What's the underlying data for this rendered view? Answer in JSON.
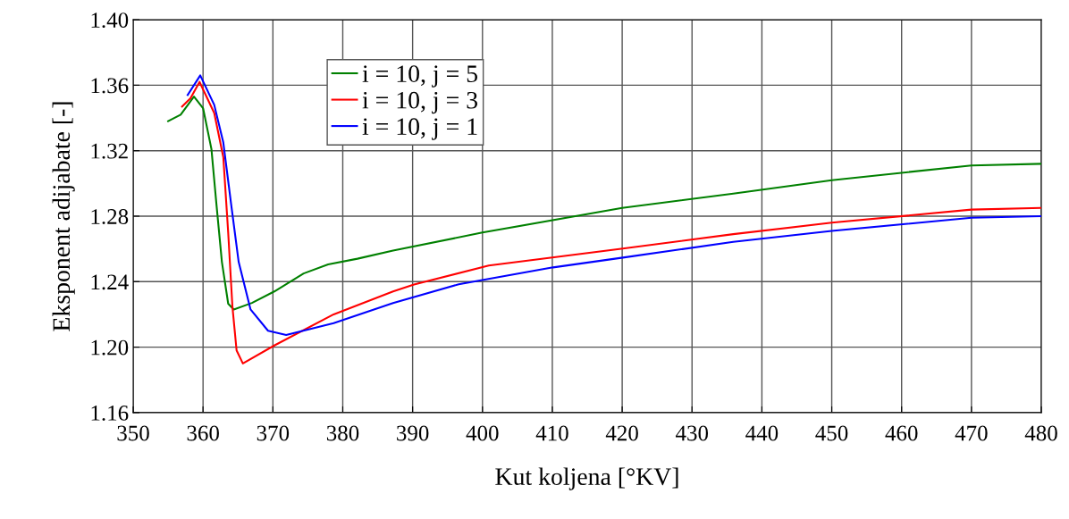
{
  "chart_data": {
    "type": "line",
    "xlabel": "Kut koljena [°KV]",
    "ylabel": "Eksponent adijabate [-]",
    "xlim": [
      350,
      480
    ],
    "xticks": [
      350,
      360,
      370,
      380,
      390,
      400,
      410,
      420,
      430,
      440,
      450,
      460,
      470,
      480
    ],
    "ylim": [
      1.16,
      1.4
    ],
    "yticks": [
      1.16,
      {
        "value": 1.2,
        "label": "1.20"
      },
      1.24,
      1.28,
      1.32,
      1.36,
      {
        "value": 1.4,
        "label": "1.40"
      }
    ],
    "grid": true,
    "legend": "top left",
    "marker": "none",
    "line_style": "solid",
    "series": [
      {
        "name": "i = 10, j = 5",
        "color": "#008000",
        "x": [
          355.0,
          356.8,
          358.7,
          360.0,
          361.2,
          361.9,
          362.7,
          363.6,
          364.4,
          367.0,
          370.2,
          374.4,
          377.9,
          382.1,
          387.2,
          400,
          420,
          435.9,
          450,
          470,
          480
        ],
        "values": [
          1.338,
          1.342,
          1.353,
          1.346,
          1.321,
          1.288,
          1.252,
          1.2265,
          1.223,
          1.227,
          1.234,
          1.245,
          1.2505,
          1.254,
          1.259,
          1.27,
          1.285,
          1.2938,
          1.302,
          1.311,
          1.312
        ]
      },
      {
        "name": "i = 10, j = 3",
        "color": "#ff0000",
        "x": [
          357.0,
          358.2,
          359.5,
          361.6,
          362.9,
          363.6,
          364.2,
          364.8,
          365.7,
          370.2,
          378.7,
          387.2,
          390.2,
          400.9,
          420.1,
          435.9,
          450,
          470,
          480
        ],
        "values": [
          1.347,
          1.352,
          1.362,
          1.343,
          1.316,
          1.27,
          1.225,
          1.198,
          1.19,
          1.201,
          1.22,
          1.234,
          1.2383,
          1.2498,
          1.2602,
          1.269,
          1.276,
          1.284,
          1.285
        ]
      },
      {
        "name": "i = 10, j = 1",
        "color": "#0000ff",
        "x": [
          357.8,
          359.6,
          361.6,
          362.9,
          364.0,
          365.1,
          366.8,
          369.3,
          371.9,
          378.7,
          387.2,
          396.6,
          410.1,
          420.1,
          435.9,
          450,
          470,
          480
        ],
        "values": [
          1.354,
          1.366,
          1.348,
          1.325,
          1.288,
          1.252,
          1.223,
          1.21,
          1.2074,
          1.2147,
          1.2269,
          1.2384,
          1.2487,
          1.2547,
          1.2643,
          1.271,
          1.279,
          1.28
        ]
      }
    ]
  }
}
